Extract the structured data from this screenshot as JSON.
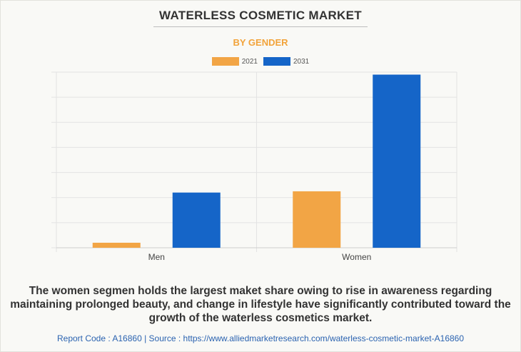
{
  "title": "WATERLESS COSMETIC MARKET",
  "subtitle": "BY GENDER",
  "caption": "The women segmen holds the largest maket share owing to rise in awareness regarding maintaining prolonged beauty, and change in lifestyle have significantly contributed toward the growth of the waterless cosmetics market.",
  "footer": "Report Code : A16860  |  Source : https://www.alliedmarketresearch.com/waterless-cosmetic-market-A16860",
  "colors": {
    "series_2021": "#f2a545",
    "series_2031": "#1565c8",
    "subtitle": "#f2a33a",
    "footer": "#2b63b0"
  },
  "chart_data": {
    "type": "bar",
    "categories": [
      "Men",
      "Women"
    ],
    "series": [
      {
        "name": "2021",
        "values": [
          0.2,
          2.25
        ]
      },
      {
        "name": "2031",
        "values": [
          2.2,
          6.9
        ]
      }
    ],
    "ylim": [
      0,
      7
    ],
    "grid": true,
    "legend_position": "top-center",
    "xlabel": "",
    "ylabel": ""
  }
}
